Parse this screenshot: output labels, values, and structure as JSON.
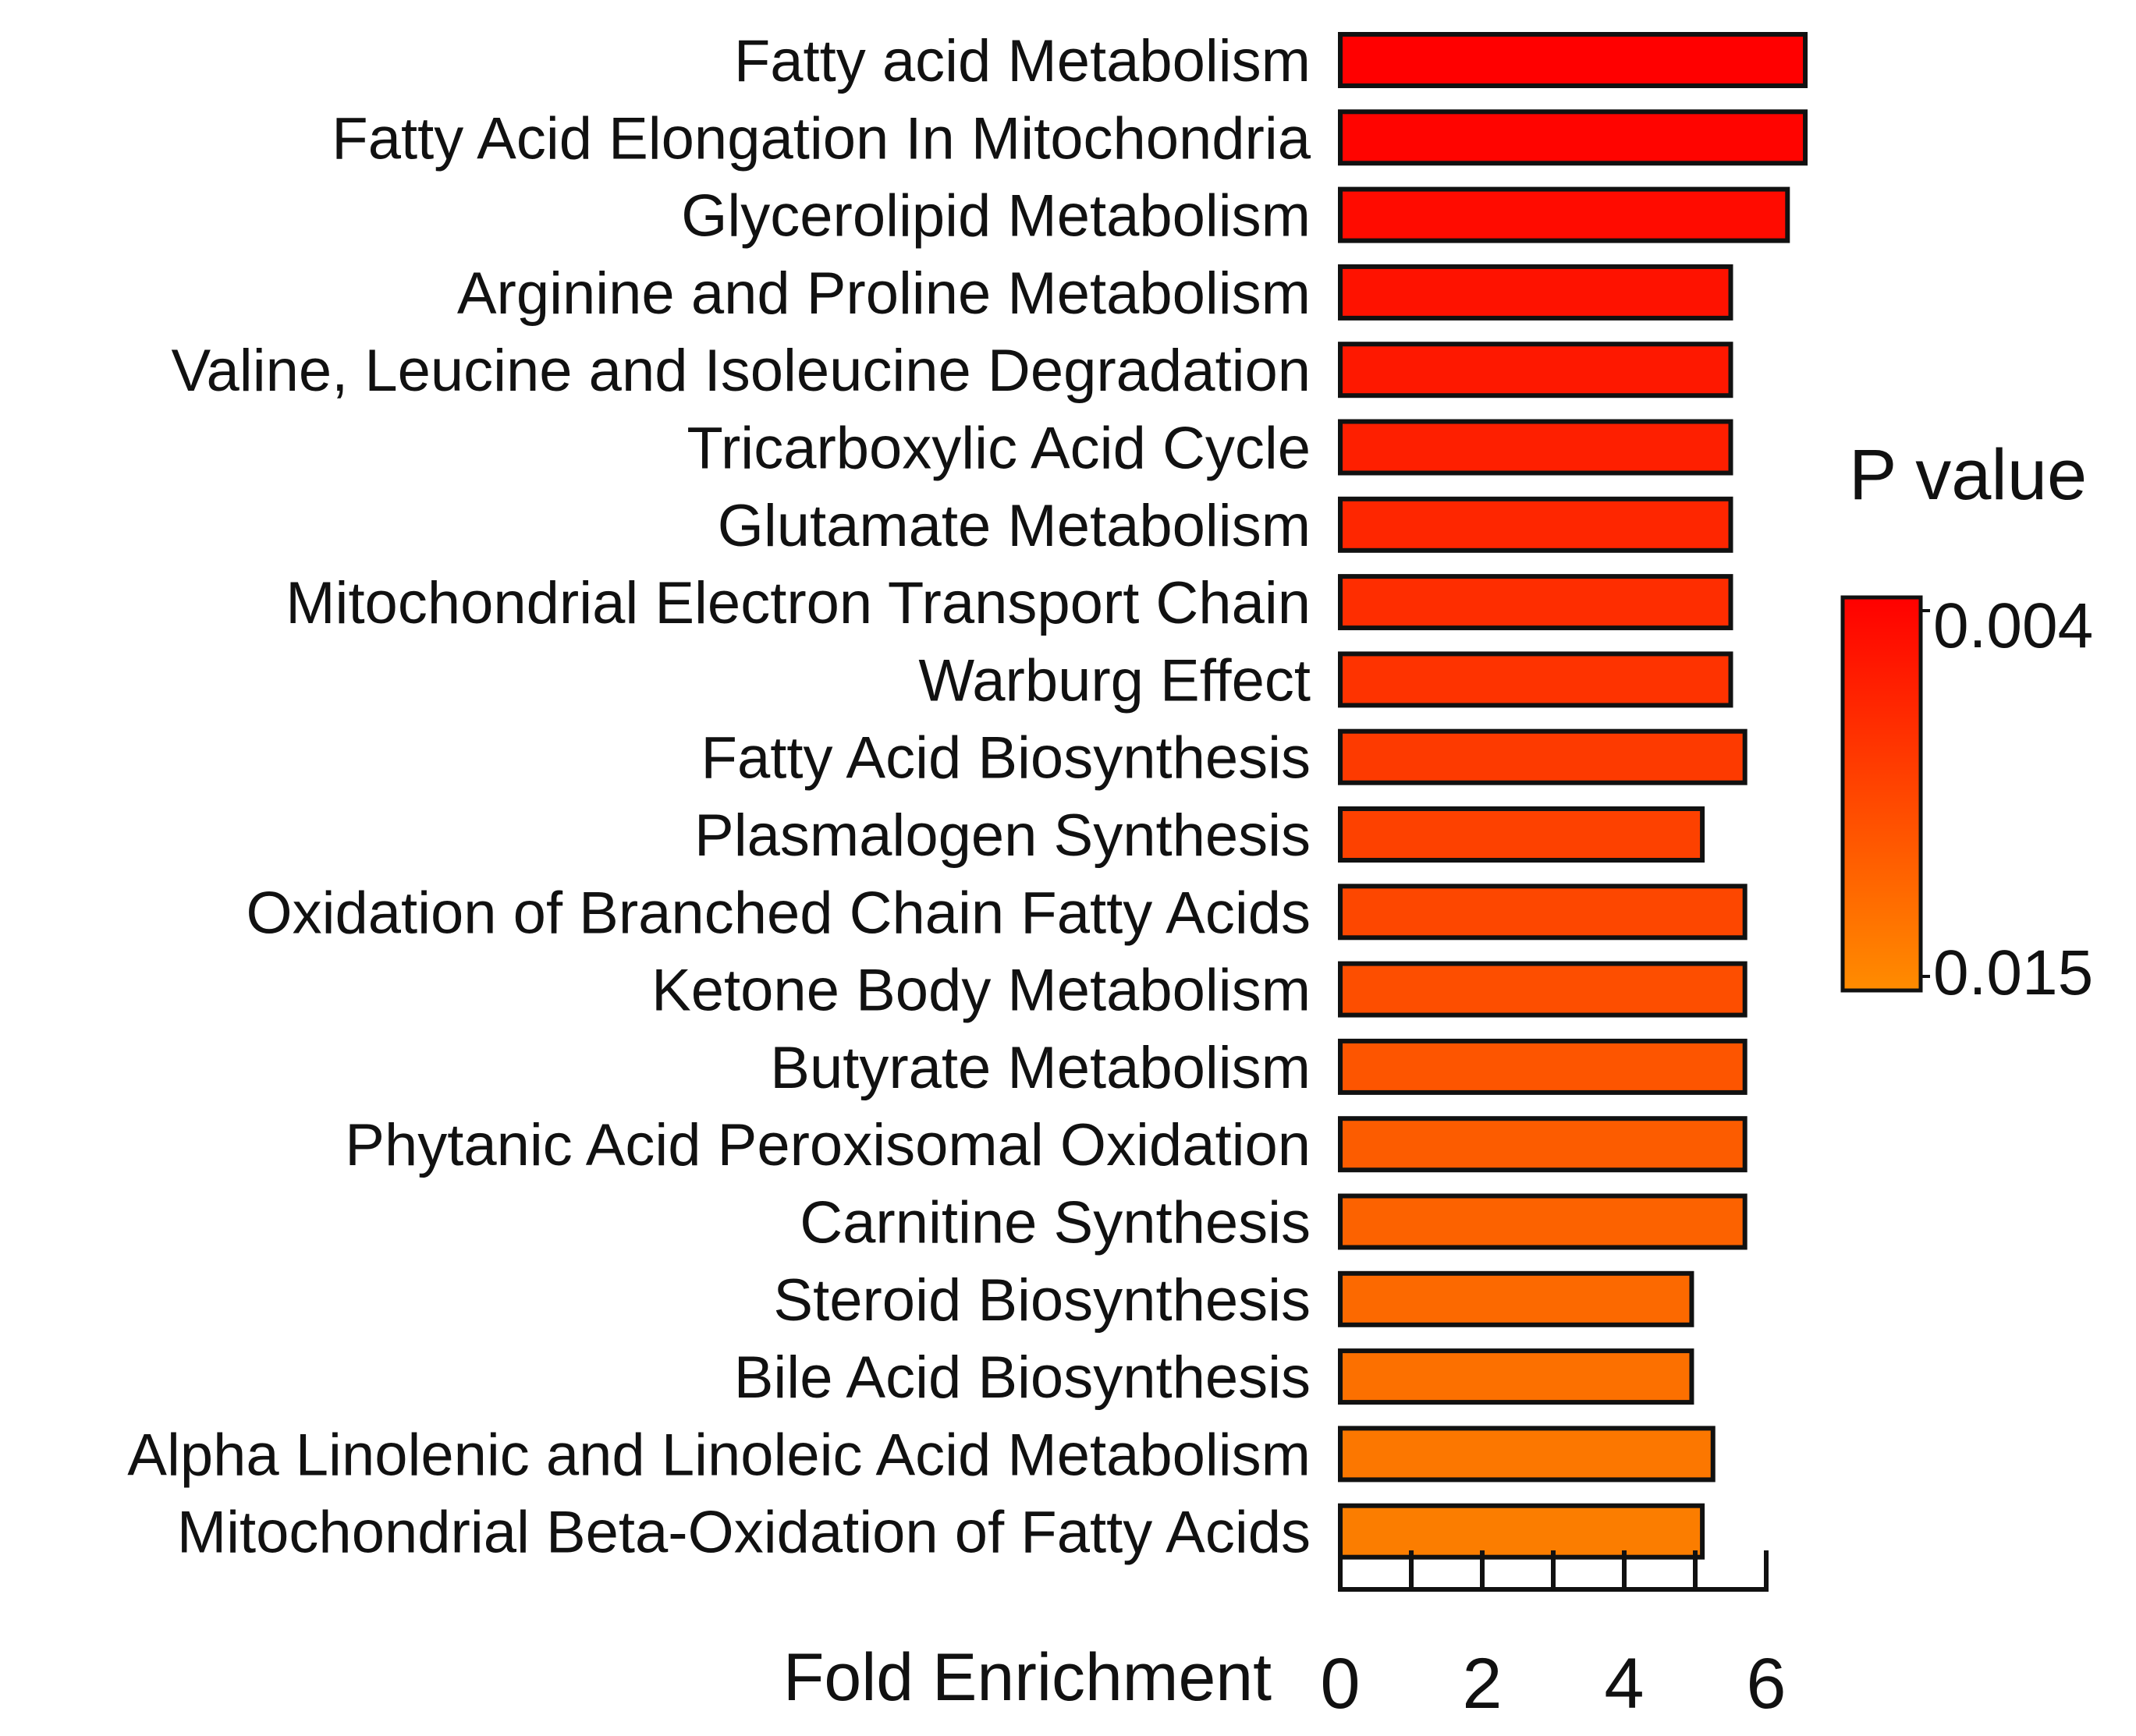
{
  "chart_data": {
    "type": "bar",
    "orientation": "horizontal",
    "title": "",
    "xlabel": "Fold Enrichment",
    "ylabel": "",
    "xlim": [
      0,
      6.2
    ],
    "x_ticks": [
      0,
      1,
      2,
      3,
      4,
      5,
      6
    ],
    "x_tick_labels": [
      "0",
      "2",
      "4",
      "6"
    ],
    "x_tick_label_values": [
      0,
      2,
      4,
      6
    ],
    "grid": false,
    "categories": [
      "Fatty acid Metabolism",
      "Fatty Acid Elongation In Mitochondria",
      "Glycerolipid Metabolism",
      "Arginine and Proline Metabolism",
      "Valine, Leucine and Isoleucine Degradation",
      "Tricarboxylic Acid Cycle",
      "Glutamate Metabolism",
      "Mitochondrial Electron Transport Chain",
      "Warburg Effect",
      "Fatty Acid Biosynthesis",
      "Plasmalogen Synthesis",
      "Oxidation of Branched Chain Fatty Acids",
      "Ketone Body Metabolism",
      "Butyrate Metabolism",
      "Phytanic Acid Peroxisomal Oxidation",
      "Carnitine Synthesis",
      "Steroid Biosynthesis",
      "Bile Acid Biosynthesis",
      "Alpha Linolenic and Linoleic Acid Metabolism",
      "Mitochondrial Beta-Oxidation of Fatty Acids"
    ],
    "values": [
      6.55,
      6.55,
      6.3,
      5.5,
      5.5,
      5.5,
      5.5,
      5.5,
      5.5,
      5.7,
      5.1,
      5.7,
      5.7,
      5.7,
      5.7,
      5.7,
      4.95,
      4.95,
      5.25,
      5.1
    ],
    "bar_colors": [
      "#ff0000",
      "#ff0400",
      "#ff0b00",
      "#fe1200",
      "#fe1800",
      "#fe1f00",
      "#fe2600",
      "#fe2d00",
      "#fe3300",
      "#fd3a00",
      "#fd4100",
      "#fd4700",
      "#fd4e00",
      "#fd5500",
      "#fc5c00",
      "#fc6200",
      "#fc6900",
      "#fc7000",
      "#fc7700",
      "#fb7d00"
    ],
    "legend": {
      "title": "P value",
      "high_label": "0.004",
      "low_label": "0.015",
      "color_top": "#ff0000",
      "color_bottom": "#ff8c00",
      "placement": "right"
    }
  }
}
